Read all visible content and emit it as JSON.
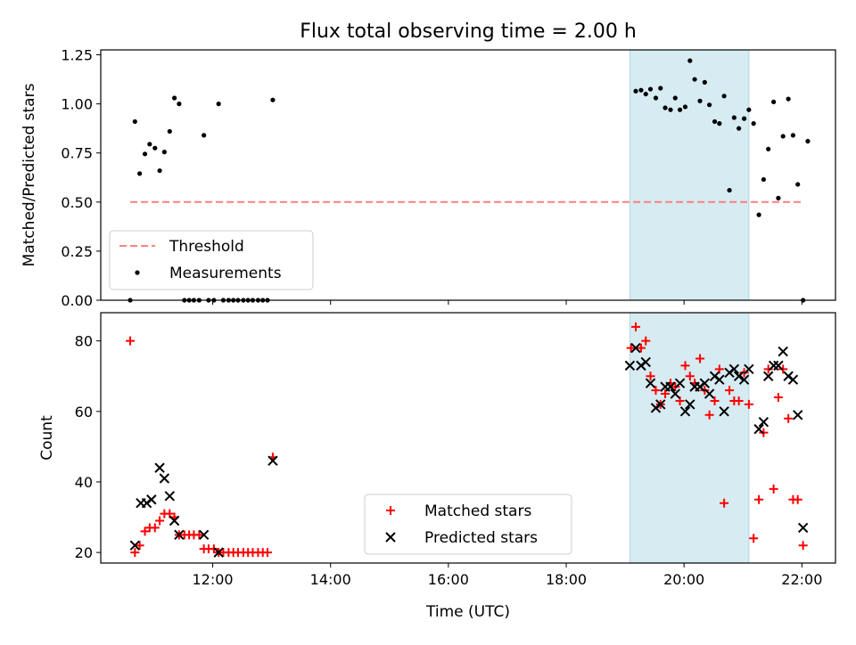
{
  "figure_title": "Flux total observing time = 2.00 h",
  "colors": {
    "threshold": "#ff7f7f",
    "measurements": "#000000",
    "matched": "#ff0000",
    "predicted": "#000000",
    "highlight": "#add8e6"
  },
  "chart_data": [
    {
      "type": "scatter",
      "title": "Flux total observing time = 2.00 h",
      "xlabel": "",
      "ylabel": "Matched/Predicted stars",
      "xlim_hours": [
        10.1,
        22.57
      ],
      "ylim": [
        0,
        1.275
      ],
      "yticks": [
        "0.00",
        "0.25",
        "0.50",
        "0.75",
        "1.00",
        "1.25"
      ],
      "ytick_values": [
        0,
        0.25,
        0.5,
        0.75,
        1.0,
        1.25
      ],
      "x_tick_labels_shown": false,
      "highlight_span_hours": [
        19.08,
        21.1
      ],
      "legend_position": "lower-left",
      "series": [
        {
          "name": "Threshold",
          "kind": "dashed-line",
          "x": [
            10.6,
            22.0
          ],
          "values": [
            0.5,
            0.5
          ]
        },
        {
          "name": "Measurements",
          "kind": "points",
          "points": [
            [
              10.6,
              0.0
            ],
            [
              10.68,
              0.91
            ],
            [
              10.76,
              0.645
            ],
            [
              10.85,
              0.745
            ],
            [
              10.93,
              0.795
            ],
            [
              11.02,
              0.775
            ],
            [
              11.1,
              0.66
            ],
            [
              11.18,
              0.755
            ],
            [
              11.27,
              0.86
            ],
            [
              11.35,
              1.03
            ],
            [
              11.43,
              1.0
            ],
            [
              11.52,
              0.0
            ],
            [
              11.6,
              0.0
            ],
            [
              11.68,
              0.0
            ],
            [
              11.77,
              0.0
            ],
            [
              11.85,
              0.84
            ],
            [
              11.93,
              0.0
            ],
            [
              12.02,
              0.0
            ],
            [
              12.1,
              1.0
            ],
            [
              12.18,
              0.0
            ],
            [
              12.27,
              0.0
            ],
            [
              12.35,
              0.0
            ],
            [
              12.43,
              0.0
            ],
            [
              12.52,
              0.0
            ],
            [
              12.6,
              0.0
            ],
            [
              12.68,
              0.0
            ],
            [
              12.77,
              0.0
            ],
            [
              12.85,
              0.0
            ],
            [
              12.93,
              0.0
            ],
            [
              13.02,
              1.02
            ],
            [
              19.18,
              1.065
            ],
            [
              19.27,
              1.07
            ],
            [
              19.35,
              1.05
            ],
            [
              19.43,
              1.075
            ],
            [
              19.52,
              1.03
            ],
            [
              19.6,
              1.08
            ],
            [
              19.68,
              0.98
            ],
            [
              19.77,
              0.97
            ],
            [
              19.85,
              1.03
            ],
            [
              19.93,
              0.97
            ],
            [
              20.02,
              0.985
            ],
            [
              20.1,
              1.22
            ],
            [
              20.18,
              1.125
            ],
            [
              20.27,
              1.015
            ],
            [
              20.35,
              1.11
            ],
            [
              20.43,
              0.995
            ],
            [
              20.52,
              0.91
            ],
            [
              20.6,
              0.9
            ],
            [
              20.68,
              1.04
            ],
            [
              20.77,
              0.56
            ],
            [
              20.85,
              0.93
            ],
            [
              20.93,
              0.875
            ],
            [
              21.02,
              0.925
            ],
            [
              21.1,
              0.97
            ],
            [
              21.18,
              0.9
            ],
            [
              21.27,
              0.435
            ],
            [
              21.35,
              0.615
            ],
            [
              21.43,
              0.77
            ],
            [
              21.52,
              1.01
            ],
            [
              21.6,
              0.52
            ],
            [
              21.68,
              0.835
            ],
            [
              21.77,
              1.025
            ],
            [
              21.85,
              0.84
            ],
            [
              21.93,
              0.59
            ],
            [
              22.02,
              0.0
            ],
            [
              22.1,
              0.81
            ]
          ]
        }
      ]
    },
    {
      "type": "scatter",
      "xlabel": "Time (UTC)",
      "ylabel": "Count",
      "xlim_hours": [
        10.1,
        22.57
      ],
      "ylim": [
        17,
        88
      ],
      "xticks": [
        "12:00",
        "14:00",
        "16:00",
        "18:00",
        "20:00",
        "22:00"
      ],
      "xtick_hours": [
        12,
        14,
        16,
        18,
        20,
        22
      ],
      "yticks": [
        "20",
        "40",
        "60",
        "80"
      ],
      "ytick_values": [
        20,
        40,
        60,
        80
      ],
      "highlight_span_hours": [
        19.08,
        21.1
      ],
      "legend_position": "lower-center",
      "series": [
        {
          "name": "Matched stars",
          "marker": "+",
          "points": [
            [
              10.6,
              80
            ],
            [
              10.68,
              20
            ],
            [
              10.76,
              22
            ],
            [
              10.85,
              26
            ],
            [
              10.93,
              27
            ],
            [
              11.02,
              27
            ],
            [
              11.1,
              29
            ],
            [
              11.18,
              31
            ],
            [
              11.27,
              31
            ],
            [
              11.35,
              30
            ],
            [
              11.43,
              25
            ],
            [
              11.52,
              25
            ],
            [
              11.6,
              25
            ],
            [
              11.68,
              25
            ],
            [
              11.77,
              25
            ],
            [
              11.85,
              21
            ],
            [
              11.93,
              21
            ],
            [
              12.02,
              21
            ],
            [
              12.1,
              20
            ],
            [
              12.18,
              20
            ],
            [
              12.27,
              20
            ],
            [
              12.35,
              20
            ],
            [
              12.43,
              20
            ],
            [
              12.52,
              20
            ],
            [
              12.6,
              20
            ],
            [
              12.68,
              20
            ],
            [
              12.77,
              20
            ],
            [
              12.85,
              20
            ],
            [
              12.93,
              20
            ],
            [
              13.02,
              47
            ],
            [
              19.1,
              78
            ],
            [
              19.18,
              84
            ],
            [
              19.27,
              78
            ],
            [
              19.35,
              80
            ],
            [
              19.43,
              70
            ],
            [
              19.52,
              66
            ],
            [
              19.6,
              62
            ],
            [
              19.68,
              65
            ],
            [
              19.77,
              68
            ],
            [
              19.85,
              67
            ],
            [
              19.93,
              63
            ],
            [
              20.02,
              73
            ],
            [
              20.1,
              70
            ],
            [
              20.18,
              68
            ],
            [
              20.27,
              75
            ],
            [
              20.35,
              66
            ],
            [
              20.43,
              59
            ],
            [
              20.52,
              63
            ],
            [
              20.6,
              72
            ],
            [
              20.68,
              34
            ],
            [
              20.77,
              66
            ],
            [
              20.85,
              63
            ],
            [
              20.93,
              63
            ],
            [
              21.02,
              71
            ],
            [
              21.1,
              62
            ],
            [
              21.18,
              24
            ],
            [
              21.27,
              35
            ],
            [
              21.35,
              54
            ],
            [
              21.43,
              72
            ],
            [
              21.52,
              38
            ],
            [
              21.6,
              64
            ],
            [
              21.68,
              72
            ],
            [
              21.77,
              58
            ],
            [
              21.85,
              35
            ],
            [
              21.93,
              35
            ],
            [
              22.02,
              22
            ]
          ]
        },
        {
          "name": "Predicted stars",
          "marker": "x",
          "points": [
            [
              10.68,
              22
            ],
            [
              10.78,
              34
            ],
            [
              10.88,
              34
            ],
            [
              10.96,
              35
            ],
            [
              11.1,
              44
            ],
            [
              11.18,
              41
            ],
            [
              11.27,
              36
            ],
            [
              11.35,
              29
            ],
            [
              11.43,
              25
            ],
            [
              11.85,
              25
            ],
            [
              12.1,
              20
            ],
            [
              13.02,
              46
            ],
            [
              19.08,
              73
            ],
            [
              19.18,
              78
            ],
            [
              19.27,
              73
            ],
            [
              19.35,
              74
            ],
            [
              19.43,
              68
            ],
            [
              19.52,
              61
            ],
            [
              19.6,
              62
            ],
            [
              19.68,
              67
            ],
            [
              19.77,
              67
            ],
            [
              19.85,
              65
            ],
            [
              19.93,
              68
            ],
            [
              20.02,
              60
            ],
            [
              20.1,
              62
            ],
            [
              20.18,
              67
            ],
            [
              20.27,
              67
            ],
            [
              20.35,
              68
            ],
            [
              20.43,
              65
            ],
            [
              20.52,
              70
            ],
            [
              20.6,
              69
            ],
            [
              20.68,
              60
            ],
            [
              20.77,
              71
            ],
            [
              20.85,
              72
            ],
            [
              20.93,
              70
            ],
            [
              21.02,
              69
            ],
            [
              21.1,
              72
            ],
            [
              21.27,
              55
            ],
            [
              21.35,
              57
            ],
            [
              21.43,
              70
            ],
            [
              21.52,
              73
            ],
            [
              21.6,
              73
            ],
            [
              21.68,
              77
            ],
            [
              21.77,
              70
            ],
            [
              21.85,
              69
            ],
            [
              21.93,
              59
            ],
            [
              22.02,
              27
            ]
          ]
        }
      ]
    }
  ]
}
